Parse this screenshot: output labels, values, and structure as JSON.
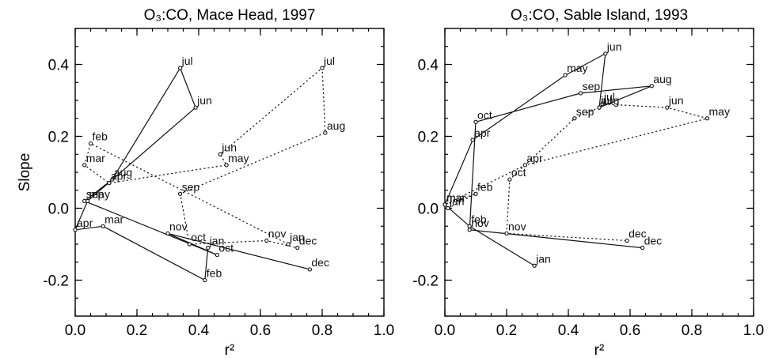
{
  "chart_data": [
    {
      "type": "line",
      "title": "O₃:CO, Mace Head, 1997",
      "xlabel": "r²",
      "ylabel": "Slope",
      "xlim": [
        0.0,
        1.0
      ],
      "ylim": [
        -0.3,
        0.5
      ],
      "xticks": [
        "0.0",
        "0.2",
        "0.4",
        "0.6",
        "0.8",
        "1.0"
      ],
      "yticks": [
        "-0.2",
        "0.0",
        "0.2",
        "0.4"
      ],
      "grid": false,
      "series": [
        {
          "style": "solid",
          "points": [
            {
              "label": "jan",
              "x": 0.43,
              "y": -0.11
            },
            {
              "label": "feb",
              "x": 0.42,
              "y": -0.2
            },
            {
              "label": "mar",
              "x": 0.09,
              "y": -0.05
            },
            {
              "label": "apr",
              "x": 0.0,
              "y": -0.06
            },
            {
              "label": "may",
              "x": 0.04,
              "y": 0.02
            },
            {
              "label": "jun",
              "x": 0.39,
              "y": 0.28
            },
            {
              "label": "jul",
              "x": 0.34,
              "y": 0.39
            },
            {
              "label": "aug",
              "x": 0.12,
              "y": 0.08
            },
            {
              "label": "sep",
              "x": 0.03,
              "y": 0.02
            },
            {
              "label": "oct",
              "x": 0.46,
              "y": -0.13
            },
            {
              "label": "nov",
              "x": 0.3,
              "y": -0.07
            },
            {
              "label": "dec",
              "x": 0.76,
              "y": -0.17
            }
          ]
        },
        {
          "style": "dotted",
          "points": [
            {
              "label": "jan",
              "x": 0.69,
              "y": -0.1
            },
            {
              "label": "feb",
              "x": 0.05,
              "y": 0.18
            },
            {
              "label": "mar",
              "x": 0.03,
              "y": 0.12
            },
            {
              "label": "apr",
              "x": 0.11,
              "y": 0.07
            },
            {
              "label": "may",
              "x": 0.49,
              "y": 0.12
            },
            {
              "label": "jun",
              "x": 0.47,
              "y": 0.15
            },
            {
              "label": "jul",
              "x": 0.8,
              "y": 0.39
            },
            {
              "label": "aug",
              "x": 0.81,
              "y": 0.21
            },
            {
              "label": "sep",
              "x": 0.34,
              "y": 0.04
            },
            {
              "label": "oct",
              "x": 0.37,
              "y": -0.1
            },
            {
              "label": "nov",
              "x": 0.62,
              "y": -0.09
            },
            {
              "label": "dec",
              "x": 0.72,
              "y": -0.11
            }
          ]
        }
      ]
    },
    {
      "type": "line",
      "title": "O₃:CO, Sable Island, 1993",
      "xlabel": "r²",
      "ylabel": "",
      "xlim": [
        0.0,
        1.0
      ],
      "ylim": [
        -0.3,
        0.5
      ],
      "xticks": [
        "0.0",
        "0.2",
        "0.4",
        "0.6",
        "0.8",
        "1.0"
      ],
      "yticks": [
        "-0.2",
        "0.0",
        "0.2",
        "0.4"
      ],
      "grid": false,
      "series": [
        {
          "style": "solid",
          "points": [
            {
              "label": "jan",
              "x": 0.29,
              "y": -0.16
            },
            {
              "label": "feb",
              "x": 0.08,
              "y": -0.05
            },
            {
              "label": "mar",
              "x": 0.0,
              "y": 0.01
            },
            {
              "label": "apr",
              "x": 0.09,
              "y": 0.19
            },
            {
              "label": "may",
              "x": 0.39,
              "y": 0.37
            },
            {
              "label": "jun",
              "x": 0.52,
              "y": 0.43
            },
            {
              "label": "jul",
              "x": 0.5,
              "y": 0.28
            },
            {
              "label": "aug",
              "x": 0.67,
              "y": 0.34
            },
            {
              "label": "sep",
              "x": 0.44,
              "y": 0.32
            },
            {
              "label": "oct",
              "x": 0.1,
              "y": 0.24
            },
            {
              "label": "nov",
              "x": 0.08,
              "y": -0.06
            },
            {
              "label": "dec",
              "x": 0.64,
              "y": -0.11
            }
          ]
        },
        {
          "style": "dotted",
          "points": [
            {
              "label": "jan",
              "x": 0.01,
              "y": 0.0
            },
            {
              "label": "feb",
              "x": 0.1,
              "y": 0.04
            },
            {
              "label": "mar",
              "x": 0.0,
              "y": 0.01
            },
            {
              "label": "apr",
              "x": 0.26,
              "y": 0.12
            },
            {
              "label": "may",
              "x": 0.85,
              "y": 0.25
            },
            {
              "label": "jun",
              "x": 0.72,
              "y": 0.28
            },
            {
              "label": "jul",
              "x": 0.51,
              "y": 0.29
            },
            {
              "label": "aug",
              "x": 0.5,
              "y": 0.28
            },
            {
              "label": "sep",
              "x": 0.42,
              "y": 0.25
            },
            {
              "label": "oct",
              "x": 0.21,
              "y": 0.08
            },
            {
              "label": "nov",
              "x": 0.2,
              "y": -0.07
            },
            {
              "label": "dec",
              "x": 0.59,
              "y": -0.09
            }
          ]
        }
      ]
    }
  ]
}
